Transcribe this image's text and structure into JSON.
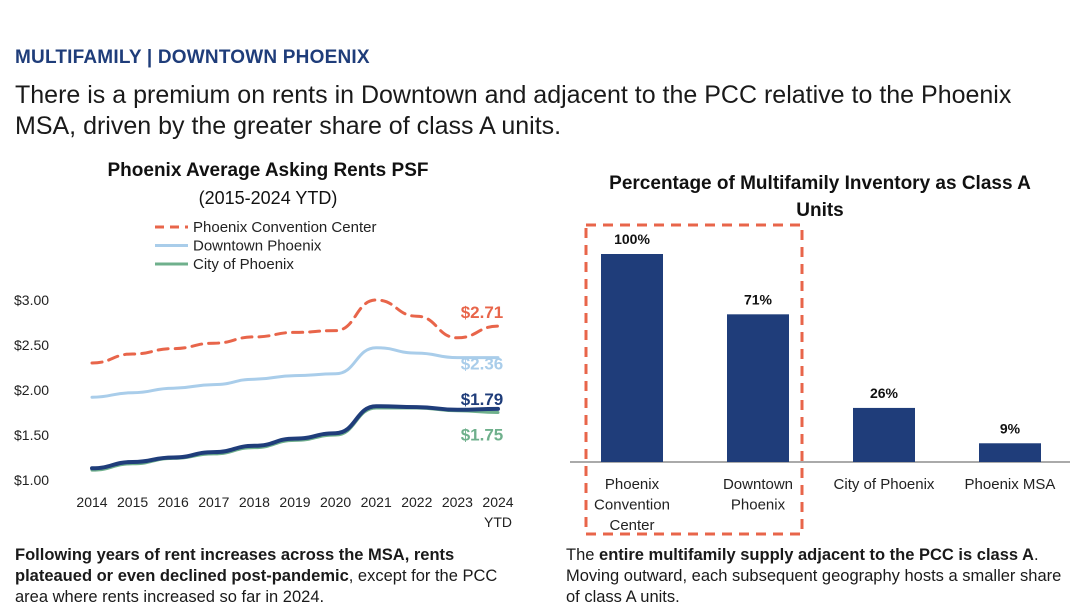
{
  "header": {
    "kicker": "MULTIFAMILY | DOWNTOWN PHOENIX",
    "headline": "There is a premium on rents in Downtown and adjacent to the PCC relative to the Phoenix MSA, driven by the greater share of class A units."
  },
  "chart_data": [
    {
      "type": "line",
      "title": "Phoenix Average Asking Rents PSF",
      "subtitle": "(2015-2024 YTD)",
      "x": [
        2014,
        2015,
        2016,
        2017,
        2018,
        2019,
        2020,
        2021,
        2022,
        2023,
        2024
      ],
      "x_tick_labels": [
        "2014",
        "2015",
        "2016",
        "2017",
        "2018",
        "2019",
        "2020",
        "2021",
        "2022",
        "2023",
        "2024"
      ],
      "x_tick_extra": "YTD",
      "y_ticks": [
        "$1.00",
        "$1.50",
        "$2.00",
        "$2.50",
        "$3.00"
      ],
      "ylim": [
        1.0,
        3.0
      ],
      "legend_position": "top",
      "series": [
        {
          "name": "Phoenix Convention Center",
          "color": "#e8654a",
          "dashed": true,
          "values": [
            2.3,
            2.4,
            2.46,
            2.52,
            2.59,
            2.64,
            2.66,
            3.0,
            2.82,
            2.58,
            2.71
          ],
          "end_label": "$2.71"
        },
        {
          "name": "Downtown Phoenix",
          "color": "#a9cdea",
          "dashed": false,
          "values": [
            1.92,
            1.97,
            2.02,
            2.06,
            2.12,
            2.16,
            2.18,
            2.47,
            2.41,
            2.36,
            2.36
          ],
          "end_label": "$2.36"
        },
        {
          "name": "City of Phoenix",
          "color": "#6fb08c",
          "dashed": false,
          "values": [
            1.11,
            1.18,
            1.24,
            1.29,
            1.36,
            1.44,
            1.5,
            1.8,
            1.8,
            1.77,
            1.75
          ],
          "end_label": "$1.75"
        },
        {
          "name": "Phoenix MSA",
          "color": "#1f3d7a",
          "dashed": false,
          "in_legend": false,
          "values": [
            1.13,
            1.2,
            1.25,
            1.31,
            1.38,
            1.46,
            1.52,
            1.82,
            1.81,
            1.78,
            1.79
          ],
          "end_label": "$1.79"
        }
      ]
    },
    {
      "type": "bar",
      "title": "Percentage of Multifamily Inventory as Class A Units",
      "categories": [
        "Phoenix Convention Center",
        "Downtown Phoenix",
        "City of Phoenix",
        "Phoenix MSA"
      ],
      "category_lines": [
        [
          "Phoenix",
          "Convention",
          "Center"
        ],
        [
          "Downtown",
          "Phoenix"
        ],
        [
          "City of Phoenix"
        ],
        [
          "Phoenix MSA"
        ]
      ],
      "values": [
        100,
        71,
        26,
        9
      ],
      "value_labels": [
        "100%",
        "71%",
        "26%",
        "9%"
      ],
      "ylim": [
        0,
        100
      ],
      "bar_color": "#1f3d7a",
      "highlight_color": "#e8654a",
      "highlighted_categories": [
        "Phoenix Convention Center",
        "Downtown Phoenix"
      ]
    }
  ],
  "captions": {
    "left": {
      "bold": "Following years of rent increases across the MSA, rents plateaued or even declined post-pandemic",
      "rest": ", except for the PCC area where rents increased so far in 2024."
    },
    "right": {
      "lead": "The ",
      "bold": "entire multifamily supply adjacent to the PCC is class A",
      "rest": ". Moving outward, each subsequent geography hosts a smaller share of class A units."
    }
  }
}
